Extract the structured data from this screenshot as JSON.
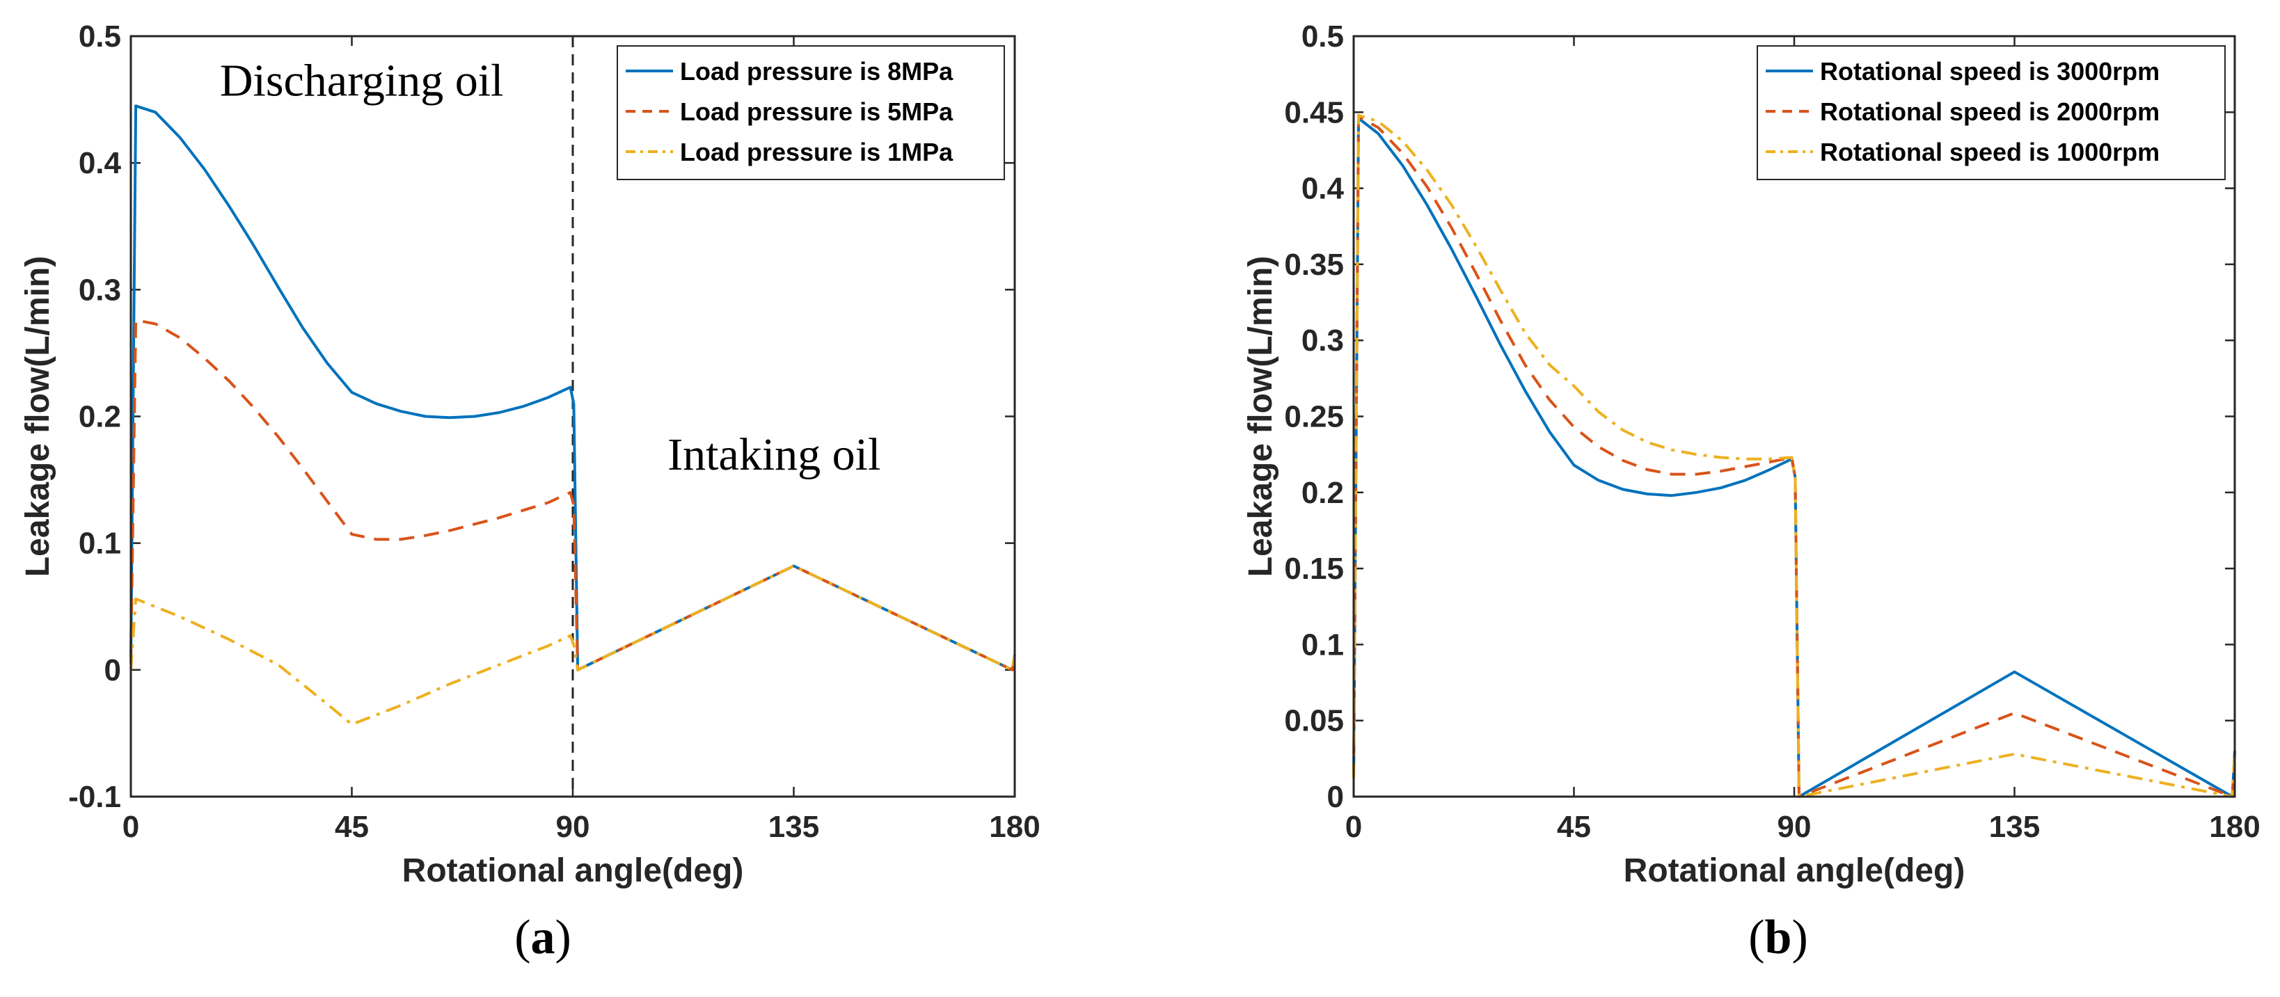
{
  "colors": {
    "series1": "#0072BD",
    "series2": "#D95319",
    "series3": "#EDB120",
    "axis": "#262626"
  },
  "chart_data": [
    {
      "id": "a",
      "type": "line",
      "panel_label_open": "(",
      "panel_label_letter": "a",
      "panel_label_close": ")",
      "xlabel": "Rotational angle(deg)",
      "ylabel": "Leakage flow(L/min)",
      "xlim": [
        0,
        180
      ],
      "ylim": [
        -0.1,
        0.5
      ],
      "xticks": [
        0,
        45,
        90,
        135,
        180
      ],
      "xtick_labels": [
        "0",
        "45",
        "90",
        "135",
        "180"
      ],
      "yticks": [
        -0.1,
        0,
        0.1,
        0.2,
        0.3,
        0.4,
        0.5
      ],
      "ytick_labels": [
        "-0.1",
        "0",
        "0.1",
        "0.2",
        "0.3",
        "0.4",
        "0.5"
      ],
      "legend_position": "top-right",
      "annotations": [
        {
          "text": "Discharging oil",
          "x": 47,
          "y": 0.453
        },
        {
          "text": "Intaking oil",
          "x": 131,
          "y": 0.158
        }
      ],
      "divider_x": 90,
      "series": [
        {
          "name": "Load pressure is 8MPa",
          "style": "solid",
          "color": "#0072BD",
          "points": [
            [
              0,
              0.01
            ],
            [
              1,
              0.445
            ],
            [
              5,
              0.44
            ],
            [
              10,
              0.42
            ],
            [
              15,
              0.395
            ],
            [
              20,
              0.366
            ],
            [
              25,
              0.335
            ],
            [
              30,
              0.302
            ],
            [
              35,
              0.27
            ],
            [
              40,
              0.242
            ],
            [
              45,
              0.219
            ],
            [
              50,
              0.21
            ],
            [
              55,
              0.204
            ],
            [
              60,
              0.2
            ],
            [
              65,
              0.199
            ],
            [
              70,
              0.2
            ],
            [
              75,
              0.203
            ],
            [
              80,
              0.208
            ],
            [
              85,
              0.215
            ],
            [
              89.5,
              0.223
            ],
            [
              90.2,
              0.21
            ],
            [
              91,
              0.0
            ],
            [
              135,
              0.082
            ],
            [
              179.5,
              0.0
            ],
            [
              180,
              0.012
            ]
          ]
        },
        {
          "name": "Load pressure is 5MPa",
          "style": "dashed",
          "color": "#D95319",
          "points": [
            [
              0,
              0.005
            ],
            [
              1,
              0.276
            ],
            [
              5,
              0.273
            ],
            [
              10,
              0.262
            ],
            [
              15,
              0.246
            ],
            [
              20,
              0.228
            ],
            [
              25,
              0.207
            ],
            [
              30,
              0.184
            ],
            [
              35,
              0.159
            ],
            [
              40,
              0.133
            ],
            [
              45,
              0.107
            ],
            [
              50,
              0.103
            ],
            [
              55,
              0.103
            ],
            [
              60,
              0.106
            ],
            [
              65,
              0.11
            ],
            [
              70,
              0.115
            ],
            [
              75,
              0.12
            ],
            [
              80,
              0.126
            ],
            [
              85,
              0.132
            ],
            [
              89.5,
              0.14
            ],
            [
              90.2,
              0.13
            ],
            [
              91,
              0.0
            ],
            [
              135,
              0.082
            ],
            [
              179.5,
              0.0
            ],
            [
              180,
              0.012
            ]
          ]
        },
        {
          "name": "Load pressure is 1MPa",
          "style": "dashdot",
          "color": "#EDB120",
          "points": [
            [
              0,
              0.0
            ],
            [
              1,
              0.056
            ],
            [
              10,
              0.042
            ],
            [
              20,
              0.024
            ],
            [
              30,
              0.004
            ],
            [
              40,
              -0.027
            ],
            [
              45,
              -0.043
            ],
            [
              55,
              -0.028
            ],
            [
              65,
              -0.011
            ],
            [
              75,
              0.004
            ],
            [
              85,
              0.019
            ],
            [
              89.5,
              0.027
            ],
            [
              90.2,
              0.02
            ],
            [
              91,
              0.0
            ],
            [
              135,
              0.082
            ],
            [
              179.5,
              0.0
            ],
            [
              180,
              0.012
            ]
          ]
        }
      ]
    },
    {
      "id": "b",
      "type": "line",
      "panel_label_open": "(",
      "panel_label_letter": "b",
      "panel_label_close": ")",
      "xlabel": "Rotational angle(deg)",
      "ylabel": "Leakage flow(L/min)",
      "xlim": [
        0,
        180
      ],
      "ylim": [
        0,
        0.5
      ],
      "xticks": [
        0,
        45,
        90,
        135,
        180
      ],
      "xtick_labels": [
        "0",
        "45",
        "90",
        "135",
        "180"
      ],
      "yticks": [
        0,
        0.05,
        0.1,
        0.15,
        0.2,
        0.25,
        0.3,
        0.35,
        0.4,
        0.45,
        0.5
      ],
      "ytick_labels": [
        "0",
        "0.05",
        "0.1",
        "0.15",
        "0.2",
        "0.25",
        "0.3",
        "0.35",
        "0.4",
        "0.45",
        "0.5"
      ],
      "legend_position": "top-right",
      "annotations": [],
      "series": [
        {
          "name": "Rotational speed is 3000rpm",
          "style": "solid",
          "color": "#0072BD",
          "points": [
            [
              0,
              0.012
            ],
            [
              1,
              0.446
            ],
            [
              5,
              0.436
            ],
            [
              10,
              0.415
            ],
            [
              15,
              0.389
            ],
            [
              20,
              0.36
            ],
            [
              25,
              0.329
            ],
            [
              30,
              0.297
            ],
            [
              35,
              0.267
            ],
            [
              40,
              0.24
            ],
            [
              45,
              0.218
            ],
            [
              50,
              0.208
            ],
            [
              55,
              0.202
            ],
            [
              60,
              0.199
            ],
            [
              65,
              0.198
            ],
            [
              70,
              0.2
            ],
            [
              75,
              0.203
            ],
            [
              80,
              0.208
            ],
            [
              85,
              0.215
            ],
            [
              89.5,
              0.222
            ],
            [
              90.2,
              0.21
            ],
            [
              91,
              0.0
            ],
            [
              135,
              0.082
            ],
            [
              179.5,
              0.0
            ],
            [
              180,
              0.03
            ]
          ]
        },
        {
          "name": "Rotational speed is 2000rpm",
          "style": "dashed",
          "color": "#D95319",
          "points": [
            [
              0,
              0.012
            ],
            [
              1,
              0.447
            ],
            [
              5,
              0.44
            ],
            [
              10,
              0.423
            ],
            [
              15,
              0.401
            ],
            [
              20,
              0.374
            ],
            [
              25,
              0.344
            ],
            [
              30,
              0.313
            ],
            [
              35,
              0.284
            ],
            [
              40,
              0.261
            ],
            [
              45,
              0.243
            ],
            [
              50,
              0.23
            ],
            [
              55,
              0.221
            ],
            [
              60,
              0.215
            ],
            [
              65,
              0.212
            ],
            [
              70,
              0.212
            ],
            [
              75,
              0.214
            ],
            [
              80,
              0.217
            ],
            [
              85,
              0.22
            ],
            [
              89.5,
              0.223
            ],
            [
              90.2,
              0.21
            ],
            [
              91,
              0.0
            ],
            [
              135,
              0.055
            ],
            [
              179.5,
              0.0
            ],
            [
              180,
              0.03
            ]
          ]
        },
        {
          "name": "Rotational speed is 1000rpm",
          "style": "dashdot",
          "color": "#EDB120",
          "points": [
            [
              0,
              0.012
            ],
            [
              1,
              0.448
            ],
            [
              5,
              0.444
            ],
            [
              10,
              0.431
            ],
            [
              15,
              0.412
            ],
            [
              20,
              0.389
            ],
            [
              25,
              0.362
            ],
            [
              30,
              0.333
            ],
            [
              35,
              0.305
            ],
            [
              40,
              0.284
            ],
            [
              45,
              0.27
            ],
            [
              50,
              0.253
            ],
            [
              55,
              0.241
            ],
            [
              60,
              0.233
            ],
            [
              65,
              0.228
            ],
            [
              70,
              0.225
            ],
            [
              75,
              0.223
            ],
            [
              80,
              0.222
            ],
            [
              85,
              0.222
            ],
            [
              89.5,
              0.223
            ],
            [
              90.2,
              0.21
            ],
            [
              91,
              0.0
            ],
            [
              135,
              0.028
            ],
            [
              179.5,
              0.0
            ],
            [
              180,
              0.03
            ]
          ]
        }
      ]
    }
  ]
}
